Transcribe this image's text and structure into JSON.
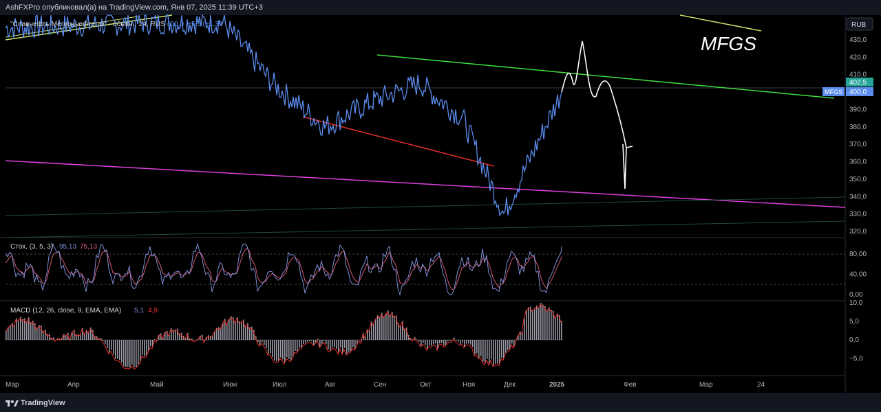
{
  "header": {
    "publish_line": "AshFXPro опубликовал(а) на TradingView.com, Янв 07, 2025 11:39 UTC+3"
  },
  "legend": {
    "symbol_text": "\"Славнефть-Мегионнефтегаз\" - обыкн., 1Ч, RUS",
    "price": "400,0",
    "change": "+5,5 (+1,39",
    "currency": "RUB"
  },
  "annotation": {
    "text": "MFGS"
  },
  "price_axis": {
    "ticks": [
      "430,0",
      "420,0",
      "410,0",
      "400,0",
      "390,0",
      "380,0",
      "370,0",
      "360,0",
      "350,0",
      "340,0",
      "330,0",
      "320,0"
    ],
    "tick_values": [
      430,
      420,
      410,
      400,
      390,
      380,
      370,
      360,
      350,
      340,
      330,
      320
    ],
    "tag_value": "402,5",
    "tag_last": "400,0",
    "tag_symbol": "MFGS"
  },
  "stoch": {
    "label": "Стох. (3, 5, 3)",
    "k_value": "95,13",
    "d_value": "75,13",
    "ticks": [
      "80,00",
      "40,00",
      "0,00"
    ],
    "tick_values": [
      80,
      40,
      0
    ]
  },
  "macd": {
    "label": "MACD (12, 26, close, 9, EMA, EMA)",
    "macd_value": "5,1",
    "signal_value": "4,9",
    "ticks": [
      "10,0",
      "5,0",
      "0,0",
      "−5,0"
    ],
    "tick_values": [
      10,
      5,
      0,
      -5
    ]
  },
  "time_axis": {
    "labels": [
      "Мар",
      "Апр",
      "Май",
      "Июн",
      "Июл",
      "Авг",
      "Сен",
      "Окт",
      "Ноя",
      "Дек",
      "2025",
      "Фев",
      "Мар",
      "24"
    ]
  },
  "footer": {
    "brand": "TradingView"
  },
  "colors": {
    "background": "#000000",
    "price_line": "#5b8def",
    "green_trend": "#3fe03f",
    "red_trend": "#e8302c",
    "magenta_trend": "#e040e0",
    "yellow_trend": "#c8e66a",
    "stoch_k": "#7e8fd6",
    "stoch_d": "#d05a78",
    "macd_hist": "#9a9aa6",
    "macd_signal": "#e8302c",
    "axis_text": "#b2b5be"
  },
  "chart_data": [
    {
      "type": "line",
      "title": "\"Славнефть-Мегионнефтегаз\" - обыкн., 1Ч, RUS",
      "ylim": [
        315,
        442
      ],
      "series": [
        {
          "x": [
            "Мар",
            "Апр",
            "Май",
            "Июн",
            "Июл",
            "Авг",
            "Сен",
            "Окт",
            "Ноя",
            "Дек",
            "2025"
          ],
          "values": [
            437,
            438,
            440,
            440,
            405,
            380,
            395,
            405,
            385,
            330,
            400
          ]
        }
      ],
      "last_value": 400.0
    },
    {
      "type": "line",
      "title": "Стох. (3, 5, 3)",
      "ylim": [
        -5,
        100
      ],
      "series": [
        {
          "name": "%K",
          "last": 95.13
        },
        {
          "name": "%D",
          "last": 75.13
        }
      ]
    },
    {
      "type": "bar",
      "title": "MACD (12, 26, close, 9, EMA, EMA)",
      "ylim": [
        -10,
        11
      ],
      "series": [
        {
          "name": "MACD",
          "last": 5.1
        },
        {
          "name": "Signal",
          "last": 4.9
        }
      ]
    }
  ]
}
